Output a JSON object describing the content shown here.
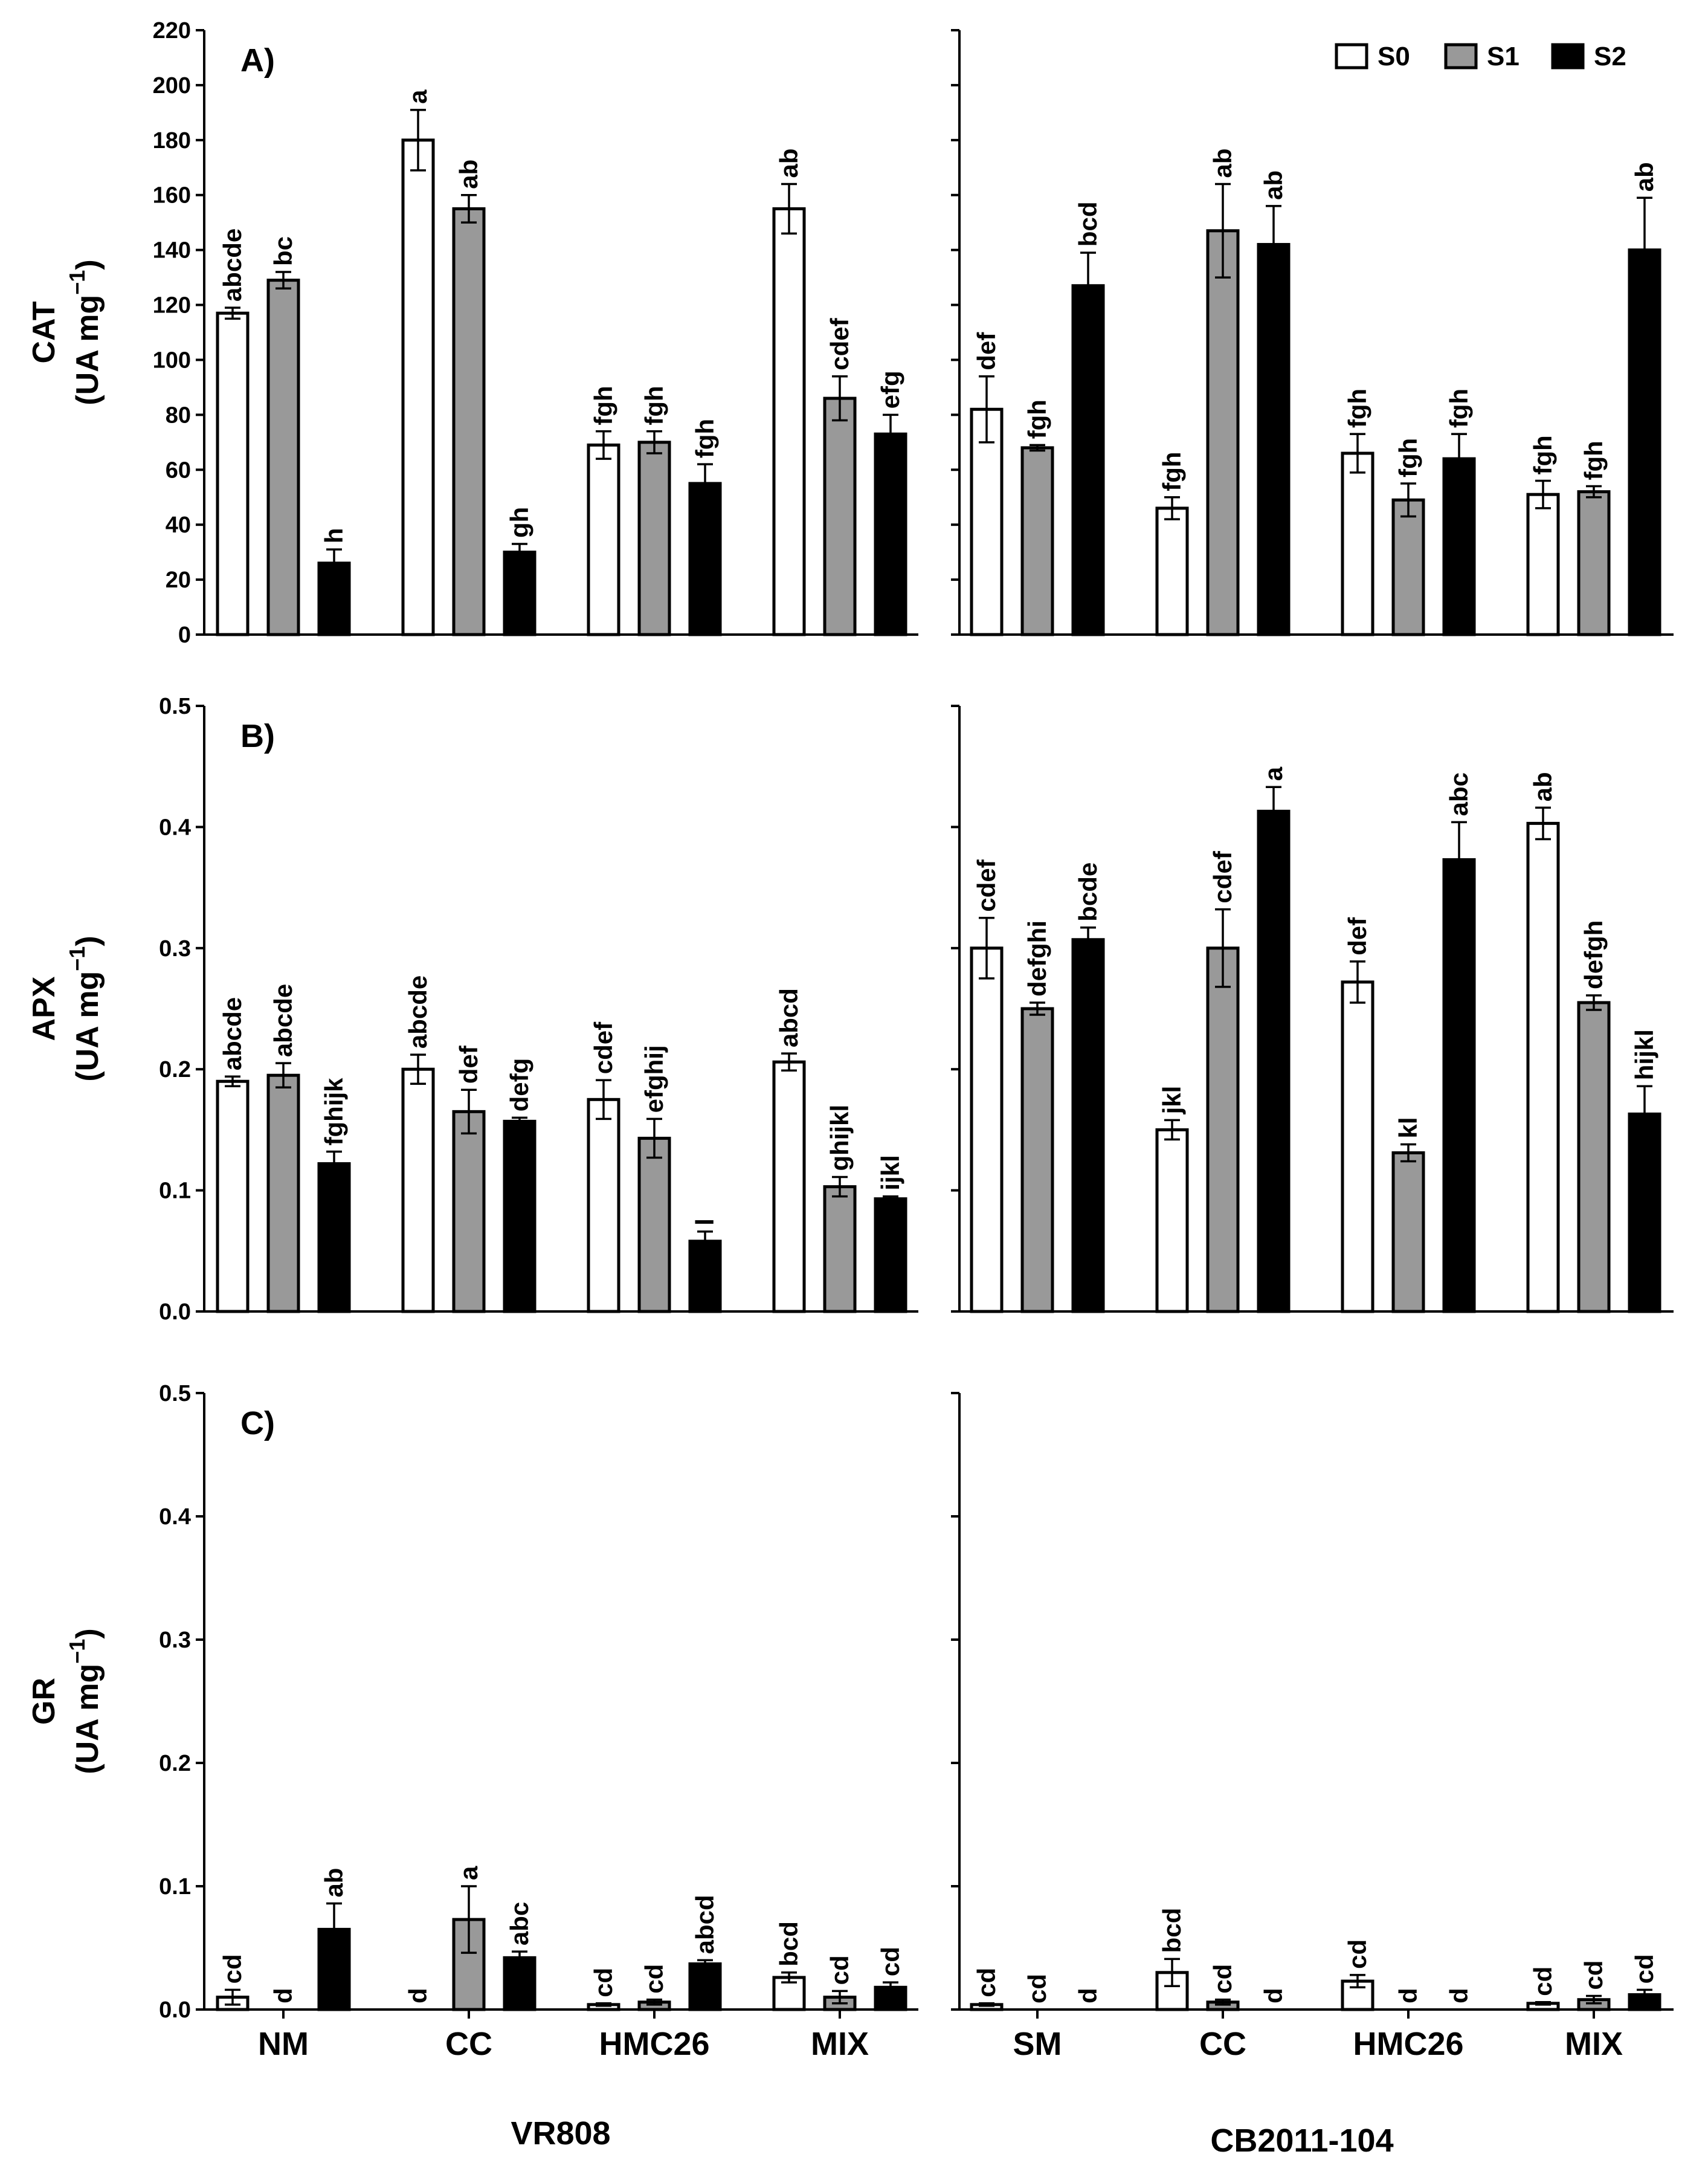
{
  "legend": [
    {
      "key": "S0",
      "label": "S0",
      "fill": "#ffffff"
    },
    {
      "key": "S1",
      "label": "S1",
      "fill": "#999999"
    },
    {
      "key": "S2",
      "label": "S2",
      "fill": "#000000"
    }
  ],
  "colors": {
    "S0": "#ffffff",
    "S1": "#999999",
    "S2": "#000000",
    "stroke": "#000000"
  },
  "cultivars": [
    "VR808",
    "CB2011-104"
  ],
  "chart_data": [
    {
      "type": "bar",
      "panel": "A)",
      "ylabel_main": "CAT",
      "ylabel_unit": "(UA mg",
      "ylabel_exp": "−1",
      "ylabel_close": ")",
      "ylim": [
        0,
        220
      ],
      "yticks": [
        0,
        20,
        40,
        60,
        80,
        100,
        120,
        140,
        160,
        180,
        200,
        220
      ],
      "ytick_labels": [
        "0",
        "20",
        "40",
        "60",
        "80",
        "100",
        "120",
        "140",
        "160",
        "180",
        "200",
        "220"
      ],
      "groups": [
        {
          "cultivar": "VR808",
          "categories": [
            "NM",
            "CC",
            "HMC26",
            "MIX"
          ],
          "series": [
            {
              "name": "S0",
              "values": [
                117,
                180,
                69,
                155
              ],
              "errors": [
                2,
                11,
                5,
                9
              ],
              "labels": [
                "abcde",
                "a",
                "fgh",
                "ab"
              ]
            },
            {
              "name": "S1",
              "values": [
                129,
                155,
                70,
                86
              ],
              "errors": [
                3,
                5,
                4,
                8
              ],
              "labels": [
                "bc",
                "ab",
                "fgh",
                "cdef"
              ]
            },
            {
              "name": "S2",
              "values": [
                26,
                30,
                55,
                73
              ],
              "errors": [
                5,
                3,
                7,
                7
              ],
              "labels": [
                "h",
                "gh",
                "fgh",
                "efg"
              ]
            }
          ]
        },
        {
          "cultivar": "CB2011-104",
          "categories": [
            "SM",
            "CC",
            "HMC26",
            "MIX"
          ],
          "series": [
            {
              "name": "S0",
              "values": [
                82,
                46,
                66,
                51
              ],
              "errors": [
                12,
                4,
                7,
                5
              ],
              "labels": [
                "def",
                "fgh",
                "fgh",
                "fgh"
              ]
            },
            {
              "name": "S1",
              "values": [
                68,
                147,
                49,
                52
              ],
              "errors": [
                1,
                17,
                6,
                2
              ],
              "labels": [
                "fgh",
                "ab",
                "fgh",
                "fgh"
              ]
            },
            {
              "name": "S2",
              "values": [
                127,
                142,
                64,
                140
              ],
              "errors": [
                12,
                14,
                9,
                19
              ],
              "labels": [
                "bcd",
                "ab",
                "fgh",
                "ab"
              ]
            }
          ]
        }
      ]
    },
    {
      "type": "bar",
      "panel": "B)",
      "ylabel_main": "APX",
      "ylabel_unit": "(UA mg",
      "ylabel_exp": "−1",
      "ylabel_close": ")",
      "ylim": [
        0,
        0.5
      ],
      "yticks": [
        0,
        0.1,
        0.2,
        0.3,
        0.4,
        0.5
      ],
      "ytick_labels": [
        "0.0",
        "0.1",
        "0.2",
        "0.3",
        "0.4",
        "0.5"
      ],
      "groups": [
        {
          "cultivar": "VR808",
          "categories": [
            "NM",
            "CC",
            "HMC26",
            "MIX"
          ],
          "series": [
            {
              "name": "S0",
              "values": [
                0.19,
                0.2,
                0.175,
                0.206
              ],
              "errors": [
                0.004,
                0.012,
                0.016,
                0.007
              ],
              "labels": [
                "abcde",
                "abcde",
                "cdef",
                "abcd"
              ]
            },
            {
              "name": "S1",
              "values": [
                0.195,
                0.165,
                0.143,
                0.103
              ],
              "errors": [
                0.01,
                0.018,
                0.016,
                0.008
              ],
              "labels": [
                "abcde",
                "def",
                "efghij",
                "ghijkl"
              ]
            },
            {
              "name": "S2",
              "values": [
                0.122,
                0.157,
                0.058,
                0.093
              ],
              "errors": [
                0.01,
                0.003,
                0.008,
                0.002
              ],
              "labels": [
                "fghijk",
                "defg",
                "l",
                "ijkl"
              ]
            }
          ]
        },
        {
          "cultivar": "CB2011-104",
          "categories": [
            "SM",
            "CC",
            "HMC26",
            "MIX"
          ],
          "series": [
            {
              "name": "S0",
              "values": [
                0.3,
                0.15,
                0.272,
                0.403
              ],
              "errors": [
                0.025,
                0.008,
                0.017,
                0.013
              ],
              "labels": [
                "cdef",
                "jkl",
                "def",
                "ab"
              ]
            },
            {
              "name": "S1",
              "values": [
                0.25,
                0.3,
                0.131,
                0.255
              ],
              "errors": [
                0.005,
                0.032,
                0.007,
                0.006
              ],
              "labels": [
                "defghi",
                "cdef",
                "kl",
                "defgh"
              ]
            },
            {
              "name": "S2",
              "values": [
                0.307,
                0.413,
                0.373,
                0.163
              ],
              "errors": [
                0.01,
                0.02,
                0.031,
                0.023
              ],
              "labels": [
                "bcde",
                "a",
                "abc",
                "hijkl"
              ]
            }
          ]
        }
      ]
    },
    {
      "type": "bar",
      "panel": "C)",
      "ylabel_main": "GR",
      "ylabel_unit": "(UA mg",
      "ylabel_exp": "−1",
      "ylabel_close": ")",
      "ylim": [
        0,
        0.5
      ],
      "yticks": [
        0,
        0.1,
        0.2,
        0.3,
        0.4,
        0.5
      ],
      "ytick_labels": [
        "0.0",
        "0.1",
        "0.2",
        "0.3",
        "0.4",
        "0.5"
      ],
      "groups": [
        {
          "cultivar": "VR808",
          "categories": [
            "NM",
            "CC",
            "HMC26",
            "MIX"
          ],
          "series": [
            {
              "name": "S0",
              "values": [
                0.01,
                0.0,
                0.004,
                0.026
              ],
              "errors": [
                0.006,
                0,
                0.001,
                0.004
              ],
              "labels": [
                "cd",
                "d",
                "cd",
                "bcd"
              ]
            },
            {
              "name": "S1",
              "values": [
                0.0,
                0.073,
                0.006,
                0.01
              ],
              "errors": [
                0,
                0.027,
                0.002,
                0.005
              ],
              "labels": [
                "d",
                "a",
                "cd",
                "cd"
              ]
            },
            {
              "name": "S2",
              "values": [
                0.065,
                0.042,
                0.037,
                0.018
              ],
              "errors": [
                0.021,
                0.005,
                0.003,
                0.004
              ],
              "labels": [
                "ab",
                "abc",
                "abcd",
                "cd"
              ]
            }
          ]
        },
        {
          "cultivar": "CB2011-104",
          "categories": [
            "SM",
            "CC",
            "HMC26",
            "MIX"
          ],
          "series": [
            {
              "name": "S0",
              "values": [
                0.004,
                0.03,
                0.023,
                0.005
              ],
              "errors": [
                0.001,
                0.011,
                0.005,
                0.001
              ],
              "labels": [
                "cd",
                "bcd",
                "cd",
                "cd"
              ]
            },
            {
              "name": "S1",
              "values": [
                0.0,
                0.006,
                0.0,
                0.008
              ],
              "errors": [
                0,
                0.002,
                0,
                0.003
              ],
              "labels": [
                "cd",
                "cd",
                "d",
                "cd"
              ]
            },
            {
              "name": "S2",
              "values": [
                0.0,
                0.0,
                0.0,
                0.012
              ],
              "errors": [
                0,
                0,
                0,
                0.004
              ],
              "labels": [
                "d",
                "d",
                "d",
                "cd"
              ]
            }
          ]
        }
      ]
    }
  ]
}
